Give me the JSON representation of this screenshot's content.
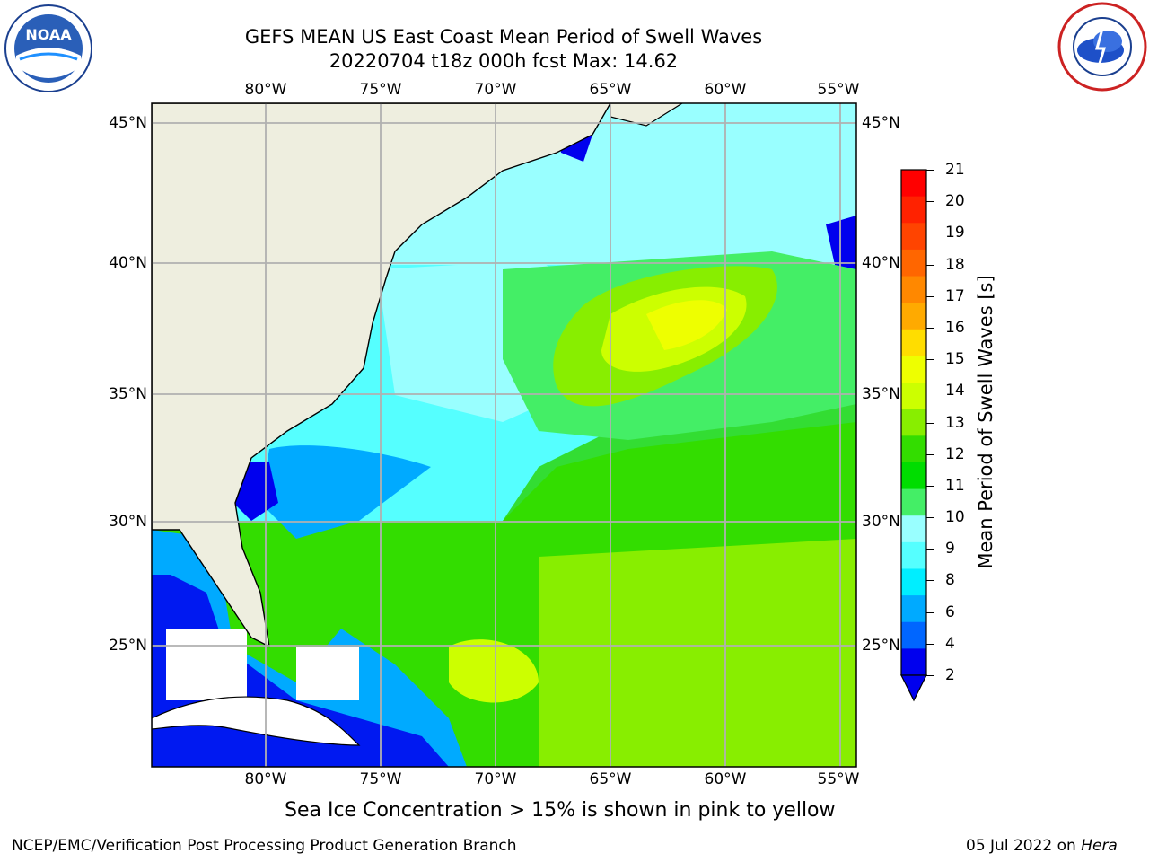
{
  "header": {
    "title_line1": "GEFS MEAN US East Coast Mean Period of Swell Waves",
    "title_line2": "20220704 t18z 000h fcst   Max: 14.62"
  },
  "logos": {
    "left": {
      "name": "noaa-logo-icon",
      "text": "NOAA"
    },
    "right": {
      "name": "nws-logo-icon",
      "text": "NATIONAL WEATHER SERVICE"
    }
  },
  "map": {
    "lon_labels": [
      "80°W",
      "75°W",
      "70°W",
      "65°W",
      "60°W",
      "55°W"
    ],
    "lat_labels": [
      "45°N",
      "40°N",
      "35°N",
      "30°N",
      "25°N"
    ],
    "lon_range": [
      -85,
      -54
    ],
    "lat_range": [
      20,
      46
    ],
    "land_color": "#eeeedf",
    "grid_color": "#b0b0b0"
  },
  "colorbar": {
    "label": "Mean Period of Swell Waves [s]",
    "ticks": [
      "21",
      "20",
      "19",
      "18",
      "17",
      "16",
      "15",
      "14",
      "13",
      "12",
      "11",
      "10",
      "9",
      "8",
      "6",
      "4",
      "2"
    ],
    "colors": [
      "#ff0000",
      "#ff2200",
      "#ff4400",
      "#ff6600",
      "#ff8800",
      "#ffaa00",
      "#ffdd00",
      "#eeff00",
      "#ccff00",
      "#88ee00",
      "#33dd00",
      "#00dd00",
      "#44ee66",
      "#99ffff",
      "#55ffff",
      "#00eeff",
      "#00aaff",
      "#0066ff",
      "#0000ee"
    ]
  },
  "note": "Sea Ice Concentration > 15% is shown in pink to yellow",
  "footer": {
    "left": "NCEP/EMC/Verification Post Processing Product Generation Branch",
    "right_date": "05 Jul 2022 on ",
    "right_host": "Hera"
  }
}
